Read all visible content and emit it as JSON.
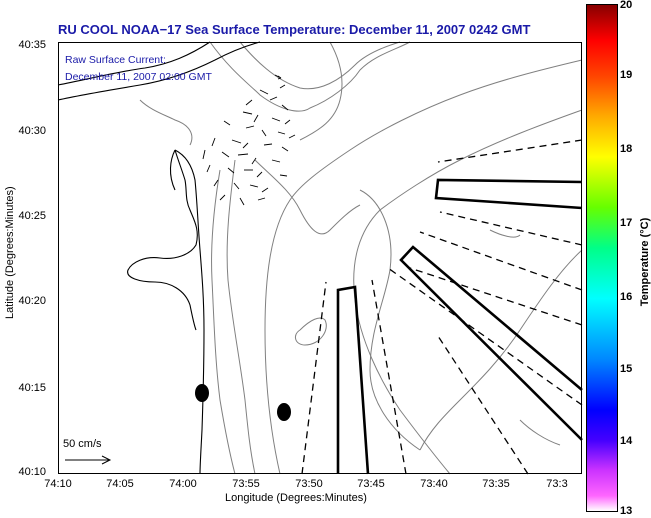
{
  "title": "RU COOL  NOAA−17  Sea Surface Temperature:  December 11, 2007 0242 GMT",
  "overlay": {
    "line1": "Raw Surface Current:",
    "line2": "December 11, 2007 02:00 GMT"
  },
  "axes": {
    "ylabel": "Latitude (Degrees:Minutes)",
    "xlabel": "Longitude (Degrees:Minutes)",
    "lat_ticks": [
      "40:35",
      "40:30",
      "40:25",
      "40:20",
      "40:15",
      "40:10"
    ],
    "lon_ticks": [
      "74:10",
      "74:05",
      "74:00",
      "73:55",
      "73:50",
      "73:45",
      "73:40",
      "73:35",
      "73:3"
    ]
  },
  "scale_arrow": {
    "label": "50 cm/s"
  },
  "colorbar": {
    "title": "Temperature (°C)",
    "ticks": [
      "20",
      "19",
      "18",
      "17",
      "16",
      "15",
      "14",
      "13"
    ],
    "range": [
      13,
      20
    ]
  },
  "colors": {
    "title_text": "#1a1aa8",
    "contour": "#808080",
    "coastline": "#000000"
  }
}
